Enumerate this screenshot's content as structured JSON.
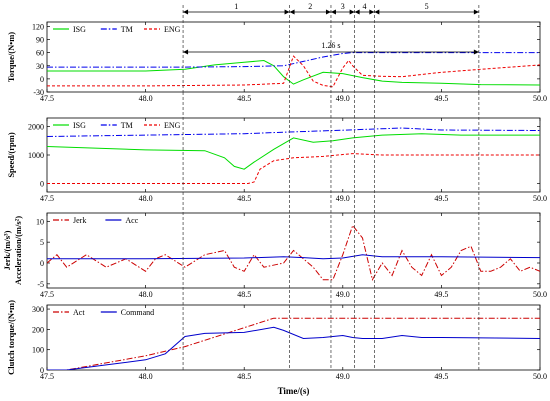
{
  "chart_data": [
    {
      "type": "line",
      "ylabel": "Torque/(N•m)",
      "xlim": [
        47.5,
        50.0
      ],
      "ylim": [
        -30,
        130
      ],
      "yticks": [
        -30,
        0,
        30,
        60,
        90,
        120
      ],
      "xticks": [
        47.5,
        48.0,
        48.5,
        49.0,
        49.5,
        50.0
      ],
      "legend": "top-left",
      "series": [
        {
          "name": "ISG",
          "color": "#00dd00",
          "dash": "solid",
          "x": [
            47.5,
            48.0,
            48.2,
            48.35,
            48.5,
            48.6,
            48.65,
            48.7,
            48.75,
            48.8,
            48.9,
            49.0,
            49.1,
            49.2,
            49.3,
            49.5,
            49.7,
            50.0
          ],
          "y": [
            18,
            18,
            22,
            32,
            38,
            42,
            30,
            5,
            -12,
            -2,
            15,
            12,
            3,
            -5,
            -8,
            -10,
            -13,
            -14
          ]
        },
        {
          "name": "TM",
          "color": "#0000ee",
          "dash": "dashdot",
          "x": [
            47.5,
            48.2,
            48.5,
            48.7,
            48.8,
            48.9,
            49.0,
            49.05,
            49.5,
            50.0
          ],
          "y": [
            27,
            27,
            28,
            30,
            40,
            50,
            58,
            60,
            60,
            60
          ]
        },
        {
          "name": "ENG",
          "color": "#ee0000",
          "dash": "dashed",
          "x": [
            47.5,
            48.0,
            48.5,
            48.7,
            48.75,
            48.8,
            48.85,
            48.9,
            48.95,
            49.0,
            49.03,
            49.05,
            49.1,
            49.2,
            49.3,
            49.5,
            49.7,
            50.0
          ],
          "y": [
            -16,
            -16,
            -14,
            -10,
            52,
            30,
            -5,
            -15,
            -18,
            25,
            42,
            30,
            8,
            6,
            5,
            15,
            22,
            32
          ]
        }
      ]
    },
    {
      "type": "line",
      "ylabel": "Speed/(rpm)",
      "xlim": [
        47.5,
        50.0
      ],
      "ylim": [
        -300,
        2300
      ],
      "yticks": [
        0,
        1000,
        2000
      ],
      "xticks": [
        47.5,
        48.0,
        48.5,
        49.0,
        49.5,
        50.0
      ],
      "legend": "top-left",
      "series": [
        {
          "name": "ISG",
          "color": "#00dd00",
          "dash": "solid",
          "x": [
            47.5,
            48.0,
            48.3,
            48.4,
            48.45,
            48.5,
            48.55,
            48.65,
            48.75,
            48.85,
            48.95,
            49.05,
            49.2,
            49.4,
            49.6,
            50.0
          ],
          "y": [
            1300,
            1180,
            1150,
            900,
            600,
            500,
            750,
            1200,
            1600,
            1450,
            1500,
            1600,
            1700,
            1750,
            1700,
            1700
          ]
        },
        {
          "name": "TM",
          "color": "#0000ee",
          "dash": "dashdot",
          "x": [
            47.5,
            48.0,
            48.5,
            48.7,
            49.0,
            49.3,
            49.5,
            50.0
          ],
          "y": [
            1650,
            1700,
            1750,
            1800,
            1870,
            1950,
            1880,
            1860
          ]
        },
        {
          "name": "ENG",
          "color": "#ee0000",
          "dash": "dashed",
          "x": [
            47.5,
            48.52,
            48.55,
            48.58,
            48.65,
            48.75,
            48.9,
            49.05,
            49.2,
            49.5,
            50.0
          ],
          "y": [
            0,
            0,
            50,
            500,
            800,
            900,
            950,
            1050,
            1000,
            1000,
            1000
          ]
        }
      ]
    },
    {
      "type": "line",
      "ylabel": "Jerk/(m/s³)  Acceleration/(m/s²)",
      "xlim": [
        47.5,
        50.0
      ],
      "ylim": [
        -6,
        12
      ],
      "yticks": [
        -5,
        0,
        5,
        10
      ],
      "xticks": [
        47.5,
        48.0,
        48.5,
        49.0,
        49.5,
        50.0
      ],
      "legend": "top-left",
      "series": [
        {
          "name": "Jerk",
          "color": "#cc0000",
          "dash": "dashdot",
          "x": [
            47.5,
            47.55,
            47.6,
            47.7,
            47.8,
            47.9,
            48.0,
            48.05,
            48.1,
            48.2,
            48.3,
            48.4,
            48.45,
            48.5,
            48.55,
            48.6,
            48.7,
            48.75,
            48.8,
            48.85,
            48.9,
            48.95,
            49.0,
            49.05,
            49.1,
            49.15,
            49.2,
            49.25,
            49.3,
            49.35,
            49.4,
            49.45,
            49.5,
            49.55,
            49.6,
            49.65,
            49.7,
            49.75,
            49.8,
            49.85,
            49.9,
            49.95,
            50.0
          ],
          "y": [
            0,
            2,
            -1,
            2,
            -1,
            1,
            -2,
            1,
            2,
            -1,
            2,
            3,
            -1,
            -2,
            2,
            -1,
            0,
            3,
            1,
            -1,
            -4,
            -4,
            2,
            9,
            6,
            -4,
            0,
            -3,
            3,
            -1,
            -3,
            2,
            -3,
            -1,
            3,
            4,
            -2,
            -2,
            -1,
            1,
            -2,
            -1,
            -2
          ]
        },
        {
          "name": "Acc",
          "color": "#0000cc",
          "dash": "solid",
          "x": [
            47.5,
            48.0,
            48.5,
            48.7,
            48.8,
            48.9,
            49.0,
            49.1,
            49.2,
            49.5,
            50.0
          ],
          "y": [
            1,
            1,
            1.2,
            1.5,
            1.3,
            1.0,
            1.2,
            2.0,
            1.5,
            1.5,
            1.3
          ]
        }
      ]
    },
    {
      "type": "line",
      "ylabel": "Clutch torque/(N•m)",
      "xlabel": "Time/(s)",
      "xlim": [
        47.5,
        50.0
      ],
      "ylim": [
        0,
        320
      ],
      "yticks": [
        0,
        100,
        200,
        300
      ],
      "xticks": [
        47.5,
        48.0,
        48.5,
        49.0,
        49.5,
        50.0
      ],
      "legend": "top-left",
      "series": [
        {
          "name": "Act",
          "color": "#cc0000",
          "dash": "dashdot",
          "x": [
            47.5,
            47.6,
            48.0,
            48.2,
            48.65,
            50.0
          ],
          "y": [
            0,
            0,
            70,
            115,
            255,
            255
          ]
        },
        {
          "name": "Command",
          "color": "#0000cc",
          "dash": "solid",
          "x": [
            47.5,
            47.6,
            47.8,
            48.0,
            48.1,
            48.2,
            48.3,
            48.5,
            48.65,
            48.7,
            48.8,
            48.9,
            48.95,
            49.0,
            49.05,
            49.1,
            49.2,
            49.3,
            49.4,
            49.5,
            50.0
          ],
          "y": [
            0,
            0,
            25,
            50,
            80,
            165,
            180,
            185,
            210,
            195,
            155,
            160,
            165,
            170,
            160,
            155,
            155,
            170,
            160,
            160,
            155
          ]
        }
      ]
    }
  ],
  "annotations": {
    "phase_labels": [
      "1",
      "2",
      "3",
      "4",
      "5"
    ],
    "phase_bounds": [
      48.19,
      48.73,
      48.94,
      49.06,
      49.16,
      49.69
    ],
    "duration_label": "1.26 s"
  }
}
